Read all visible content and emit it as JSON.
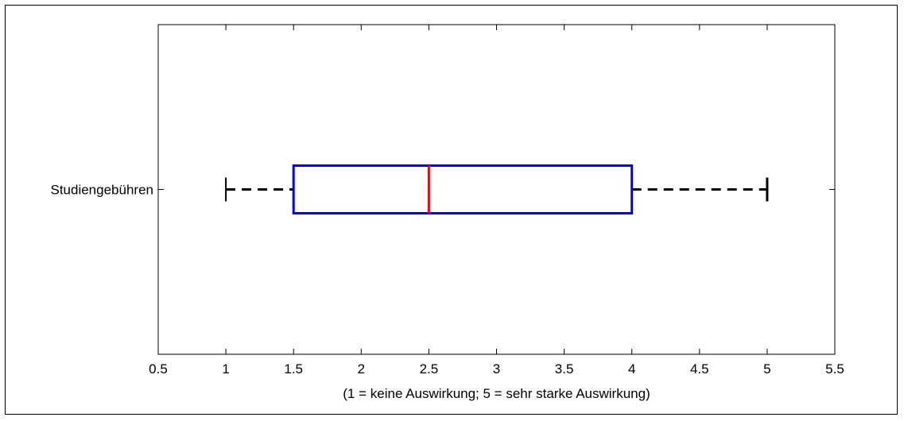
{
  "chart_data": {
    "type": "boxplot",
    "orientation": "horizontal",
    "categories": [
      "Studiengebühren"
    ],
    "boxes": [
      {
        "category": "Studiengebühren",
        "whisker_low": 1,
        "q1": 1.5,
        "median": 2.5,
        "q3": 4,
        "whisker_high": 5
      }
    ],
    "xlabel": "(1 = keine Auswirkung; 5 = sehr starke Auswirkung)",
    "xlim": [
      0.5,
      5.5
    ],
    "xticks": [
      0.5,
      1,
      1.5,
      2,
      2.5,
      3,
      3.5,
      4,
      4.5,
      5,
      5.5
    ],
    "xtick_labels": [
      "0.5",
      "1",
      "1.5",
      "2",
      "2.5",
      "3",
      "3.5",
      "4",
      "4.5",
      "5",
      "5.5"
    ],
    "grid": false,
    "colors": {
      "box": "#0000ff",
      "median": "#ff0000",
      "whisker": "#000000"
    }
  }
}
